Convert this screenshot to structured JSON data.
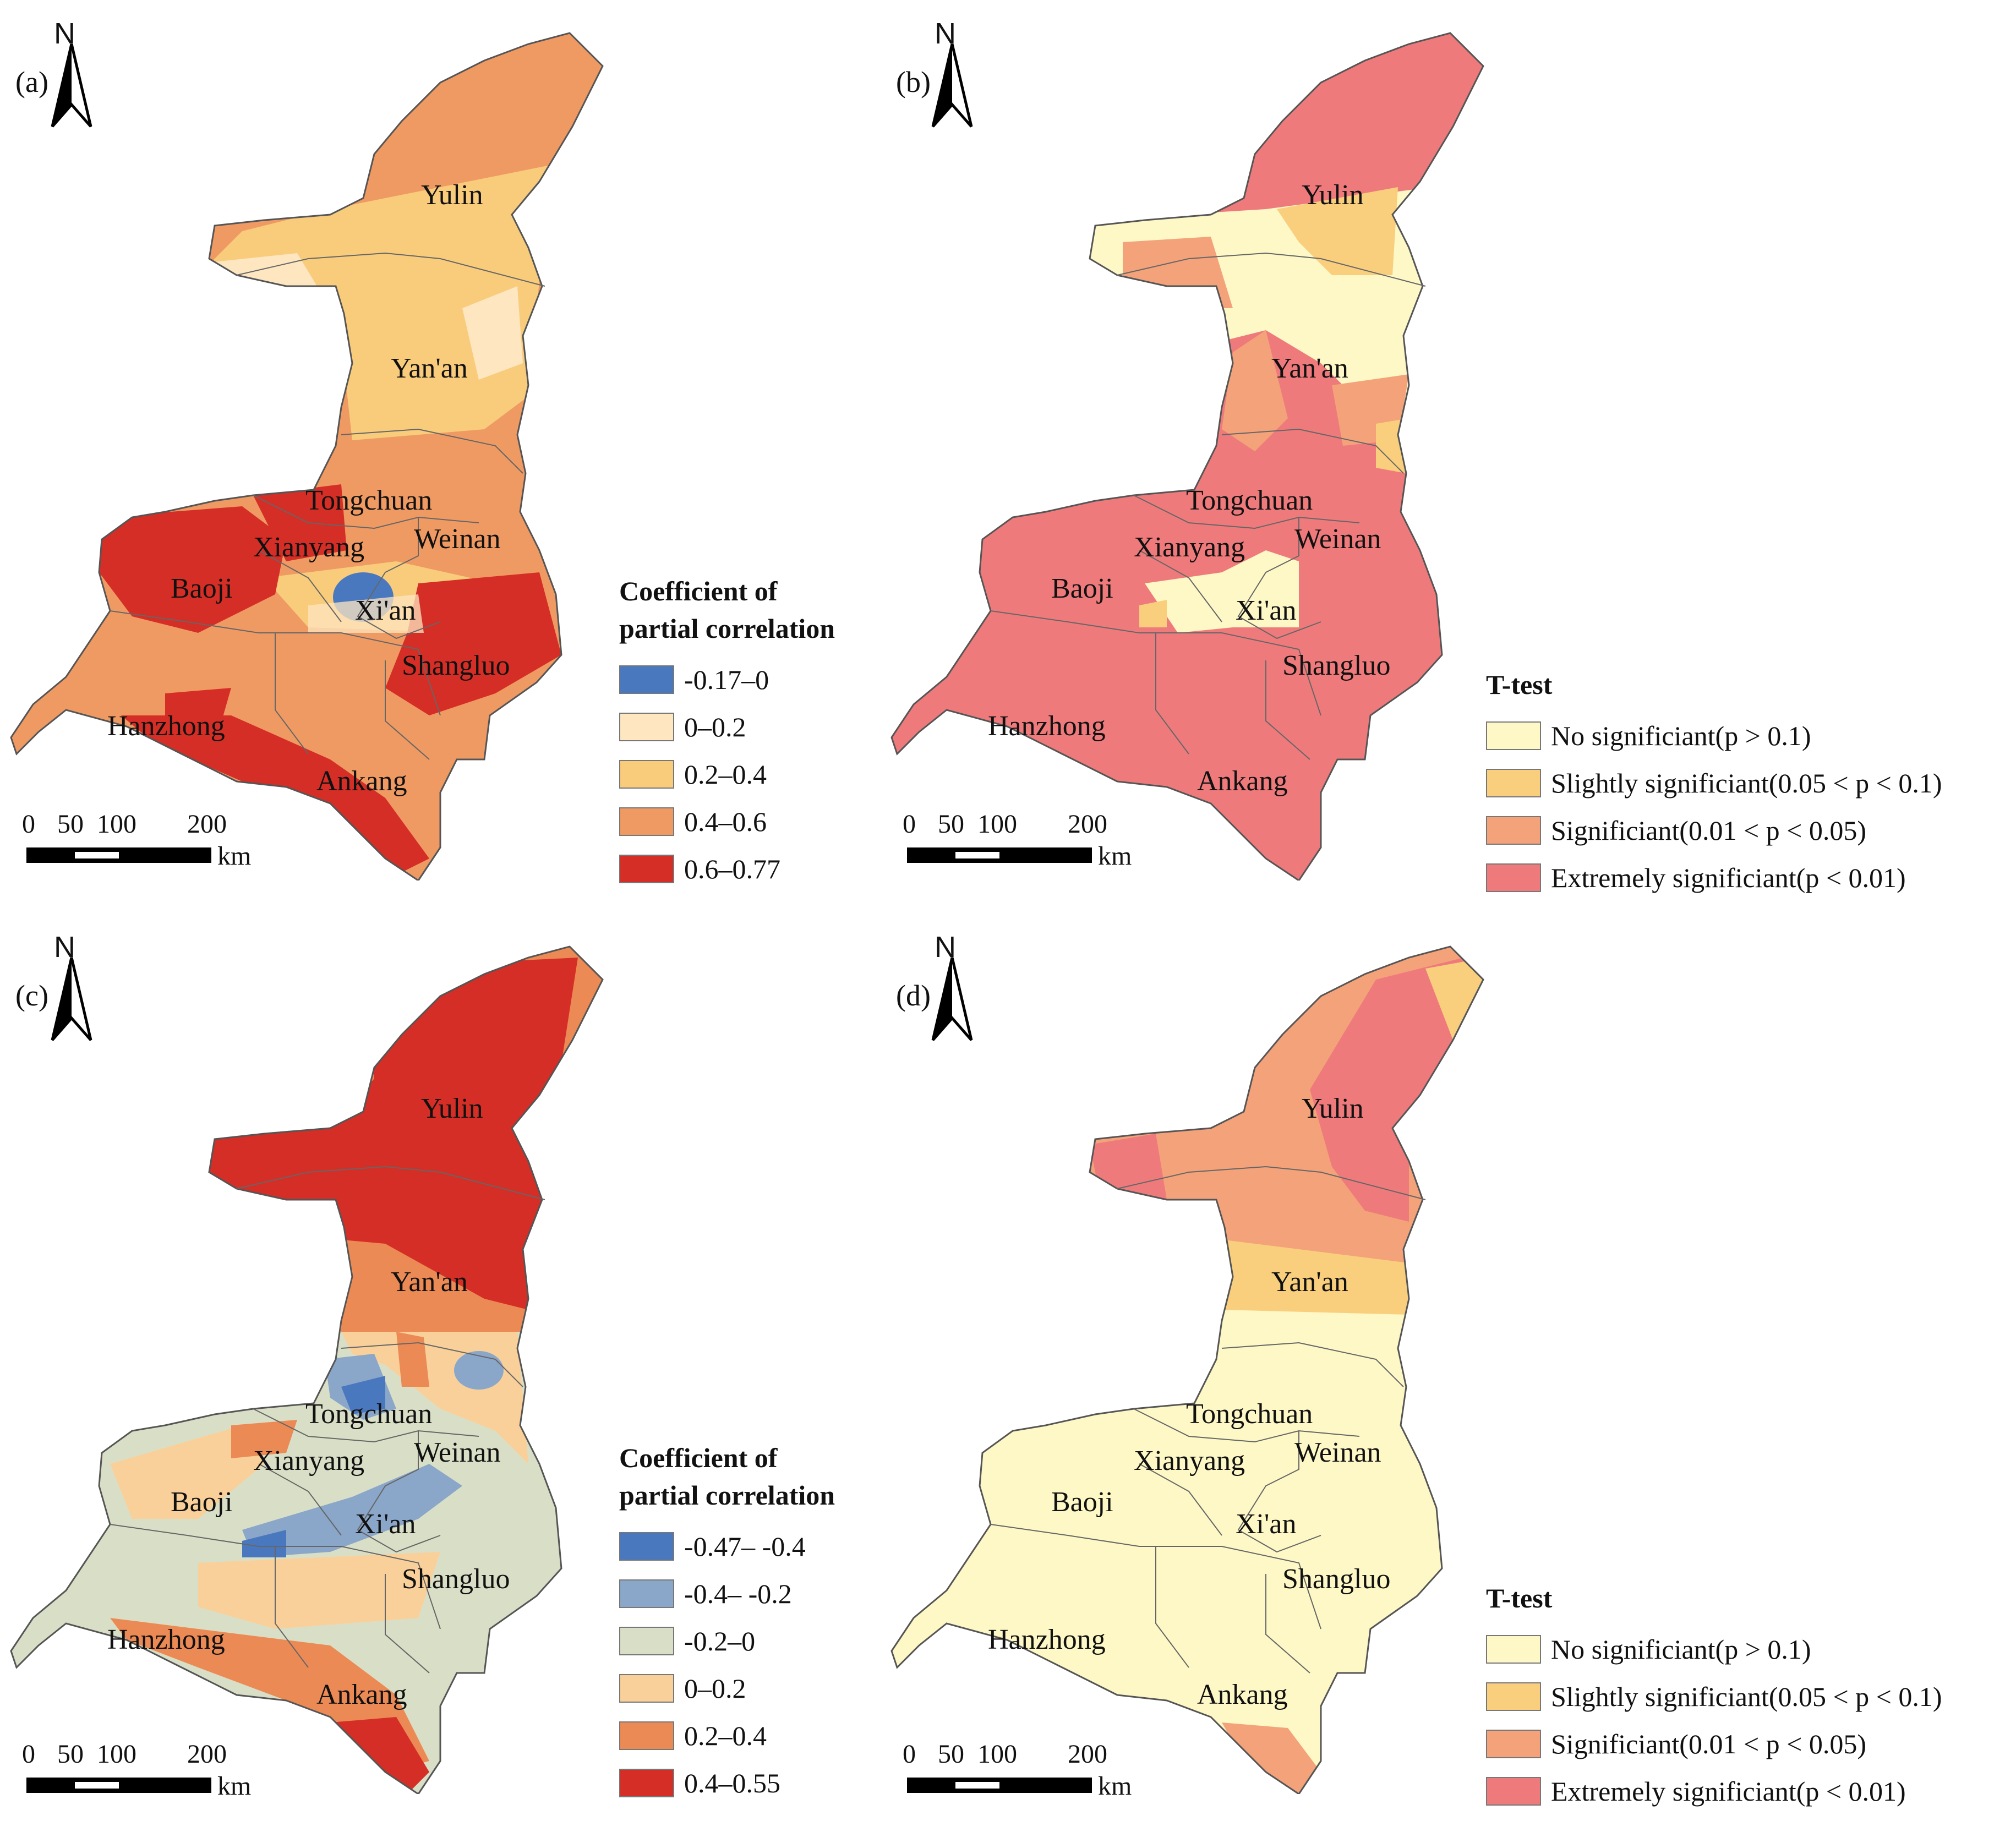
{
  "north_label": "N",
  "scale": {
    "ticks": [
      "0",
      "50",
      "100",
      "200"
    ],
    "unit": "km"
  },
  "cities": [
    "Yulin",
    "Yan'an",
    "Tongchuan",
    "Xianyang",
    "Weinan",
    "Baoji",
    "Xi'an",
    "Shangluo",
    "Hanzhong",
    "Ankang"
  ],
  "panels": [
    {
      "letter": "(a)",
      "legend_title": [
        "Coefficient of",
        "partial correlation"
      ],
      "legend": [
        {
          "label": "-0.17–0",
          "color": "#4a78bf"
        },
        {
          "label": "0–0.2",
          "color": "#fde6c0"
        },
        {
          "label": "0.2–0.4",
          "color": "#f9cc7c"
        },
        {
          "label": "0.4–0.6",
          "color": "#ef9a63"
        },
        {
          "label": "0.6–0.77",
          "color": "#d42e26"
        }
      ]
    },
    {
      "letter": "(b)",
      "legend_title": [
        "T-test"
      ],
      "legend": [
        {
          "label": "No significiant(p > 0.1)",
          "color": "#fdf8c6"
        },
        {
          "label": "Slightly significiant(0.05 < p < 0.1)",
          "color": "#f9cf7e"
        },
        {
          "label": "Significiant(0.01 < p < 0.05)",
          "color": "#f3a27a"
        },
        {
          "label": "Extremely significiant(p < 0.01)",
          "color": "#ef7a7c"
        }
      ]
    },
    {
      "letter": "(c)",
      "legend_title": [
        "Coefficient of",
        "partial correlation"
      ],
      "legend": [
        {
          "label": "-0.47– -0.4",
          "color": "#4a78bf"
        },
        {
          "label": "-0.4– -0.2",
          "color": "#8aa6c9"
        },
        {
          "label": "-0.2–0",
          "color": "#d9dfc6"
        },
        {
          "label": "0–0.2",
          "color": "#fad09a"
        },
        {
          "label": "0.2–0.4",
          "color": "#ec8a55"
        },
        {
          "label": "0.4–0.55",
          "color": "#d42e26"
        }
      ]
    },
    {
      "letter": "(d)",
      "legend_title": [
        "T-test"
      ],
      "legend": [
        {
          "label": "No significiant(p > 0.1)",
          "color": "#fdf8c6"
        },
        {
          "label": "Slightly significiant(0.05 < p < 0.1)",
          "color": "#f9cf7e"
        },
        {
          "label": "Significiant(0.01 < p < 0.05)",
          "color": "#f3a27a"
        },
        {
          "label": "Extremely significiant(p < 0.01)",
          "color": "#ef7a7c"
        }
      ]
    }
  ]
}
